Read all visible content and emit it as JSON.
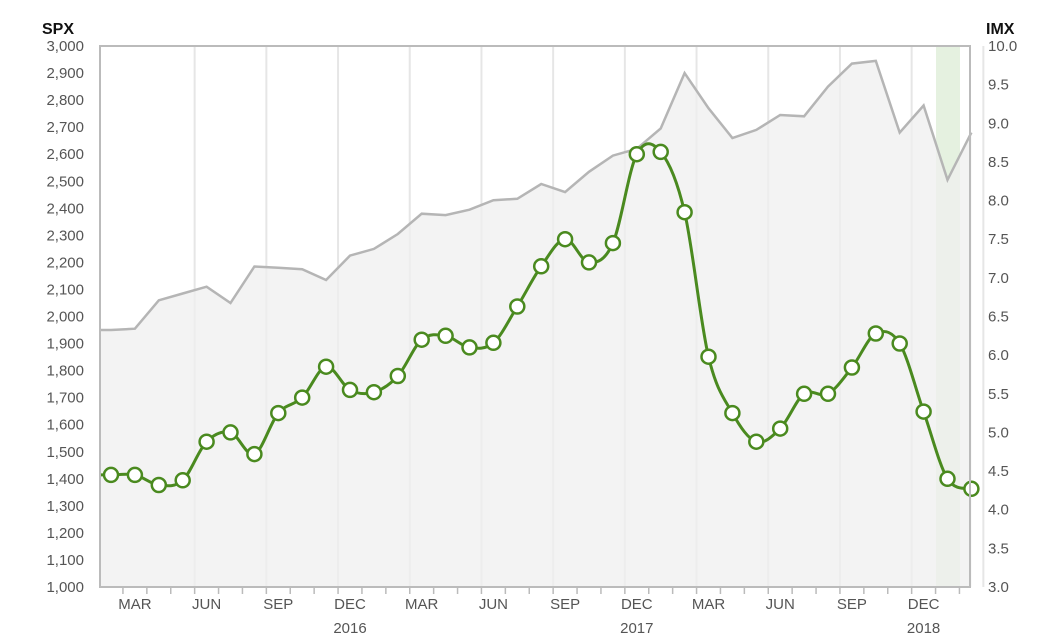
{
  "chart_data": {
    "type": "line",
    "left_axis_label": "SPX",
    "right_axis_label": "IMX",
    "ylim_left": [
      1000,
      3000
    ],
    "ylim_right": [
      3.0,
      10.0
    ],
    "left_ticks": [
      "1,000",
      "1,100",
      "1,200",
      "1,300",
      "1,400",
      "1,500",
      "1,600",
      "1,700",
      "1,800",
      "1,900",
      "2,000",
      "2,100",
      "2,200",
      "2,300",
      "2,400",
      "2,500",
      "2,600",
      "2,700",
      "2,800",
      "2,900",
      "3,000"
    ],
    "right_ticks": [
      "3.0",
      "3.5",
      "4.0",
      "4.5",
      "5.0",
      "5.5",
      "6.0",
      "6.5",
      "7.0",
      "7.5",
      "8.0",
      "8.5",
      "9.0",
      "9.5",
      "10.0"
    ],
    "month_labels": [
      {
        "i": 1,
        "label": "MAR"
      },
      {
        "i": 4,
        "label": "JUN"
      },
      {
        "i": 7,
        "label": "SEP"
      },
      {
        "i": 10,
        "label": "DEC"
      },
      {
        "i": 13,
        "label": "MAR"
      },
      {
        "i": 16,
        "label": "JUN"
      },
      {
        "i": 19,
        "label": "SEP"
      },
      {
        "i": 22,
        "label": "DEC"
      },
      {
        "i": 25,
        "label": "MAR"
      },
      {
        "i": 28,
        "label": "JUN"
      },
      {
        "i": 31,
        "label": "SEP"
      },
      {
        "i": 34,
        "label": "DEC"
      }
    ],
    "year_labels": [
      {
        "i": 10.5,
        "label": "2016"
      },
      {
        "i": 22.5,
        "label": "2017"
      },
      {
        "i": 34.5,
        "label": "2018"
      }
    ],
    "spx": [
      1950,
      1955,
      2060,
      2085,
      2110,
      2050,
      2185,
      2180,
      2175,
      2135,
      2225,
      2250,
      2305,
      2380,
      2375,
      2395,
      2430,
      2435,
      2490,
      2460,
      2535,
      2595,
      2620,
      2695,
      2900,
      2770,
      2660,
      2690,
      2745,
      2740,
      2850,
      2935,
      2945,
      2680,
      2780,
      2505,
      2680
    ],
    "imx": [
      4.45,
      4.45,
      4.32,
      4.38,
      4.88,
      5.0,
      4.72,
      5.25,
      5.45,
      5.85,
      5.55,
      5.52,
      5.73,
      6.2,
      6.25,
      6.1,
      6.16,
      6.63,
      7.15,
      7.5,
      7.2,
      7.45,
      8.6,
      8.63,
      7.85,
      5.98,
      5.25,
      4.88,
      5.05,
      5.5,
      5.5,
      5.84,
      6.28,
      6.15,
      5.27,
      4.4,
      4.27
    ]
  }
}
